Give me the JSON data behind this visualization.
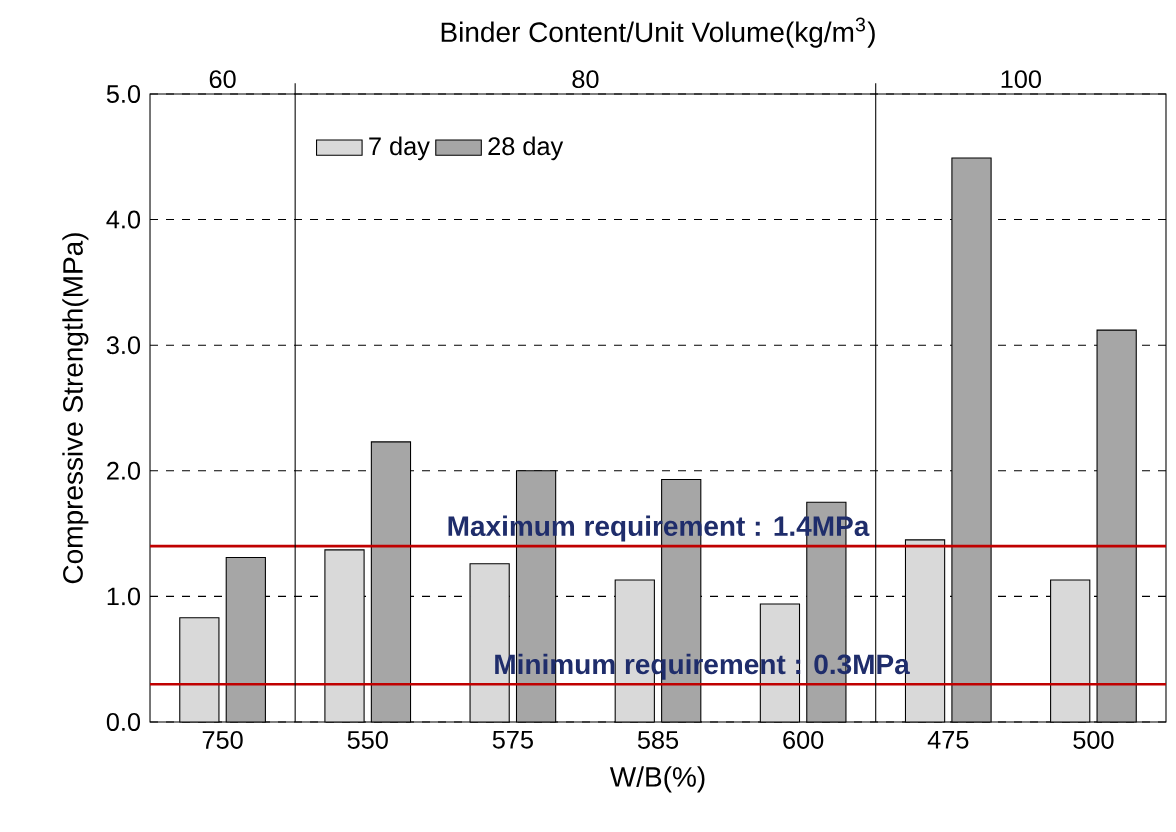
{
  "chart_data": {
    "type": "bar",
    "xlabel": "W/B(%)",
    "ylabel": "Compressive Strength(MPa)",
    "x2label": "Binder Content/Unit Volume(kg/m$^{3}$)",
    "categories": [
      "750",
      "550",
      "575",
      "585",
      "600",
      "475",
      "500"
    ],
    "series": [
      {
        "name": "7 day",
        "color": "#d9d9d9",
        "values": [
          0.83,
          1.37,
          1.26,
          1.13,
          0.94,
          1.45,
          1.13
        ]
      },
      {
        "name": "28 day",
        "color": "#a6a6a6",
        "values": [
          1.31,
          2.23,
          2.0,
          1.93,
          1.75,
          4.49,
          3.12
        ]
      }
    ],
    "ylim": [
      0,
      5
    ],
    "yticks": [
      {
        "value": 0,
        "label": "0.0"
      },
      {
        "value": 1,
        "label": "1.0"
      },
      {
        "value": 2,
        "label": "2.0"
      },
      {
        "value": 3,
        "label": "3.0"
      },
      {
        "value": 4,
        "label": "4.0"
      },
      {
        "value": 5,
        "label": "5.0"
      }
    ],
    "annotations": [
      "60",
      "80",
      "100"
    ],
    "ref_lines": [
      {
        "axis": "y",
        "value": 1.4,
        "label": "Maximum requirement : 1.4MPa",
        "color": "#c00000"
      },
      {
        "axis": "y",
        "value": 0.3,
        "label": "Minimum requirement : 0.3MPa",
        "color": "#c00000"
      }
    ],
    "grid": "y",
    "legend": "top left"
  }
}
